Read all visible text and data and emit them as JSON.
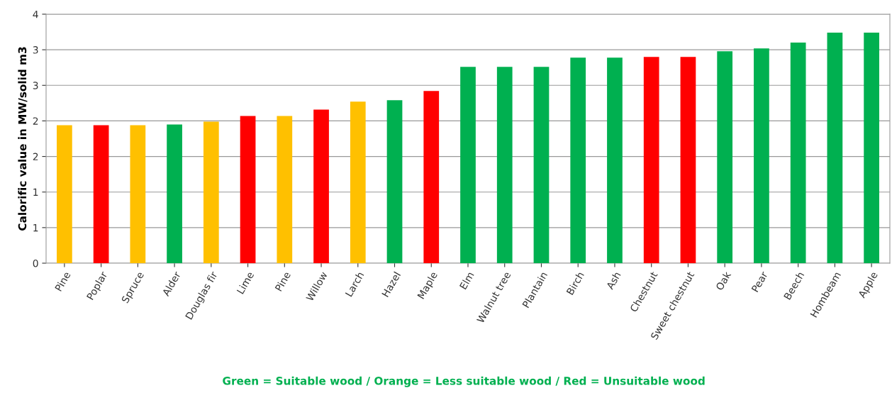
{
  "chart_data": {
    "type": "bar",
    "ylabel": "Calorific value in MW/solid m3",
    "categories": [
      "Pine",
      "Poplar",
      "Spruce",
      "Alder",
      "Douglas fir",
      "Lime",
      "Pine",
      "Willow",
      "Larch",
      "Hazel",
      "Maple",
      "Elm",
      "Walnut tree",
      "Plantain",
      "Birch",
      "Ash",
      "Chestnut",
      "Sweet chestnut",
      "Oak",
      "Pear",
      "Beech",
      "Hombeam",
      "Apple"
    ],
    "values": [
      1.94,
      1.94,
      1.94,
      1.95,
      1.99,
      2.07,
      2.07,
      2.16,
      2.27,
      2.29,
      2.42,
      2.76,
      2.76,
      2.76,
      2.89,
      2.89,
      2.9,
      2.9,
      2.98,
      3.02,
      3.1,
      3.24,
      3.24
    ],
    "colors": [
      "#ffc000",
      "#ff0000",
      "#ffc000",
      "#00b050",
      "#ffc000",
      "#ff0000",
      "#ffc000",
      "#ff0000",
      "#ffc000",
      "#00b050",
      "#ff0000",
      "#00b050",
      "#00b050",
      "#00b050",
      "#00b050",
      "#00b050",
      "#ff0000",
      "#ff0000",
      "#00b050",
      "#00b050",
      "#00b050",
      "#00b050",
      "#00b050"
    ],
    "ylim": [
      0,
      3.5
    ],
    "yticks": [
      0,
      {
        "value": 0.5,
        "label": "1"
      },
      {
        "value": 1,
        "label": "1"
      },
      {
        "value": 1.5,
        "label": "2"
      },
      {
        "value": 2,
        "label": "2"
      },
      {
        "value": 2.5,
        "label": "3"
      },
      {
        "value": 3,
        "label": "3"
      },
      {
        "value": 3.5,
        "label": "4"
      }
    ],
    "grid": "y",
    "annotations": [
      "Green = Suitable wood / Orange = Less suitable wood / Red = Unsuitable wood"
    ]
  }
}
